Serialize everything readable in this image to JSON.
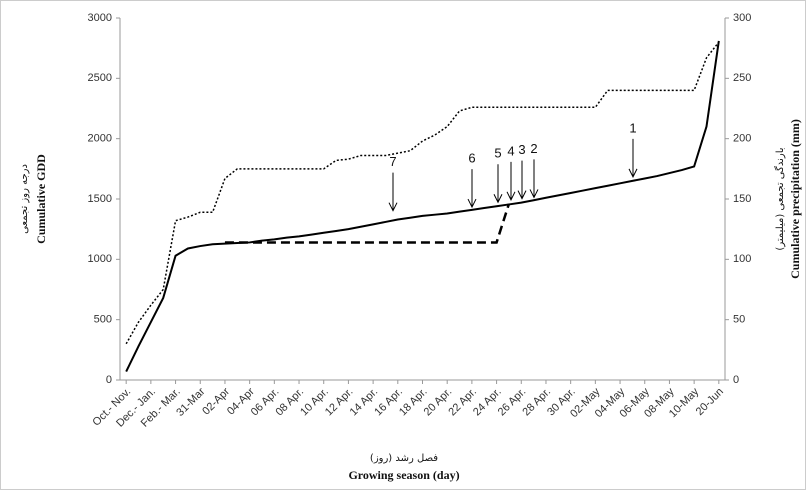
{
  "chart_data": {
    "type": "line",
    "x_label_fa": "فصل رشد (روز)",
    "x_label": "Growing season (day)",
    "y_label_fa": "درجه روز تجمعی",
    "y_label": "Cumulative GDD",
    "y2_label_fa": "بارندگی تجمعی (میلیمتر)",
    "y2_label": "Cumulative precipitation (mm)",
    "categories": [
      "Oct.- Nov.",
      null,
      "Dec.- Jan.",
      null,
      "Feb.- Mar.",
      null,
      "31-Mar",
      null,
      "02-Apr",
      null,
      "04-Apr",
      null,
      "06 Apr.",
      null,
      "08 Apr.",
      null,
      "10 Apr.",
      null,
      "12 Apr.",
      null,
      "14 Apr.",
      null,
      "16 Apr.",
      null,
      "18 Apr.",
      null,
      "20 Apr.",
      null,
      "22 Apr.",
      null,
      "24 Apr.",
      null,
      "26 Apr.",
      null,
      "28 Apr.",
      null,
      "30 Apr.",
      null,
      "02-May",
      null,
      "04-May",
      null,
      "06-May",
      null,
      "08-May",
      null,
      "10-May",
      null,
      "20-Jun"
    ],
    "series": [
      {
        "color": "#000000",
        "dash": "solid",
        "axis": "y",
        "values": [
          70,
          280,
          480,
          680,
          1030,
          1090,
          1110,
          1125,
          1130,
          1135,
          1140,
          1155,
          1165,
          1180,
          1190,
          1205,
          1220,
          1235,
          1250,
          1270,
          1290,
          1310,
          1330,
          1345,
          1360,
          1370,
          1380,
          1395,
          1410,
          1425,
          1440,
          1455,
          1470,
          1490,
          1510,
          1530,
          1550,
          1570,
          1590,
          1610,
          1630,
          1650,
          1670,
          1690,
          1715,
          1740,
          1770,
          2100,
          2810
        ]
      },
      {
        "color": "#000000",
        "dash": "dotted",
        "axis": "y2",
        "values": [
          30,
          48,
          62,
          75,
          132,
          135,
          139,
          139,
          167,
          175,
          175,
          175,
          175,
          175,
          175,
          175,
          175,
          182,
          183,
          186,
          186,
          186,
          188,
          190,
          198,
          203,
          210,
          223,
          226,
          226,
          226,
          226,
          226,
          226,
          226,
          226,
          226,
          226,
          226,
          240,
          240,
          240,
          240,
          240,
          240,
          240,
          240,
          267,
          280
        ]
      },
      {
        "color": "#000000",
        "dash": "dashed",
        "axis": "y",
        "values": [
          null,
          null,
          null,
          null,
          null,
          null,
          null,
          null,
          1140,
          1140,
          1140,
          1140,
          1140,
          1140,
          1140,
          1140,
          1140,
          1140,
          1140,
          1140,
          1140,
          1140,
          1140,
          1140,
          1140,
          1140,
          1140,
          1140,
          1140,
          1140,
          1140,
          1460,
          null,
          null,
          null,
          null,
          null,
          null,
          null,
          null,
          null,
          null,
          null,
          null,
          null,
          null,
          null,
          null,
          null
        ]
      }
    ],
    "annotations": [
      "7",
      "6",
      "5",
      "4",
      "3",
      "2",
      "1"
    ],
    "ylim": [
      0,
      3000
    ],
    "yticks": [
      0,
      500,
      1000,
      1500,
      2000,
      2500,
      3000
    ],
    "y2lim": [
      0,
      300
    ],
    "y2ticks": [
      0,
      50,
      100,
      150,
      200,
      250,
      300
    ]
  }
}
